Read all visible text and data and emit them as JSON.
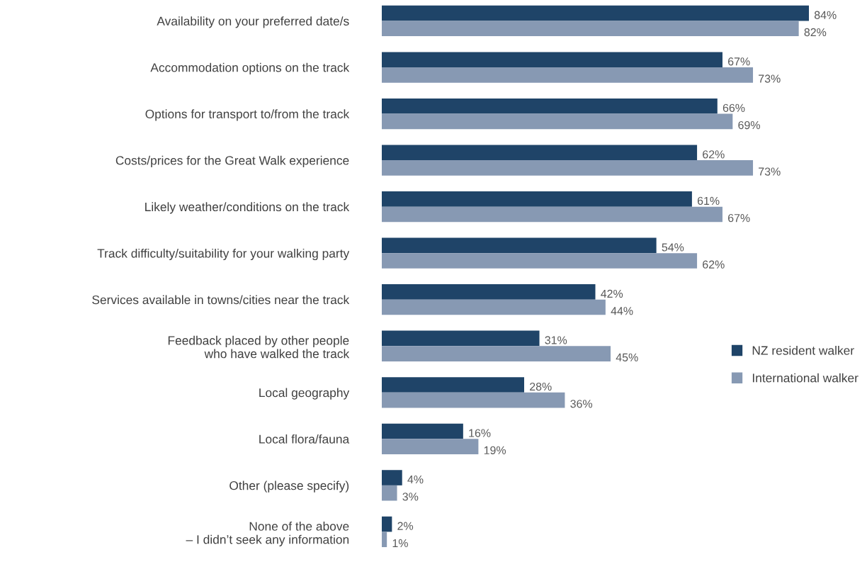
{
  "chart_data": {
    "type": "bar",
    "orientation": "horizontal",
    "legend": "right",
    "categories": [
      "Availability on your preferred date/s",
      "Accommodation options on the track",
      "Options for transport to/from the track",
      "Costs/prices for the Great Walk experience",
      "Likely weather/conditions on the track",
      "Track difficulty/suitability for your walking party",
      "Services available in towns/cities near the track",
      "Feedback placed by other people\nwho have walked the track",
      "Local geography",
      "Local flora/fauna",
      "Other (please specify)",
      "None of the above\n– I didn’t seek any information"
    ],
    "series": [
      {
        "name": "NZ resident walker",
        "color": "#1f4468",
        "values": [
          84,
          67,
          66,
          62,
          61,
          54,
          42,
          31,
          28,
          16,
          4,
          2
        ],
        "value_labels": [
          "84%",
          "67%",
          "66%",
          "62%",
          "61%",
          "54%",
          "42%",
          "31%",
          "28%",
          "16%",
          "4%",
          "2%"
        ]
      },
      {
        "name": "International walker",
        "color": "#8799b3",
        "values": [
          82,
          73,
          69,
          73,
          67,
          62,
          44,
          45,
          36,
          19,
          3,
          1
        ],
        "value_labels": [
          "82%",
          "73%",
          "69%",
          "73%",
          "67%",
          "62%",
          "44%",
          "45%",
          "36%",
          "19%",
          "3%",
          "1%"
        ]
      }
    ]
  }
}
